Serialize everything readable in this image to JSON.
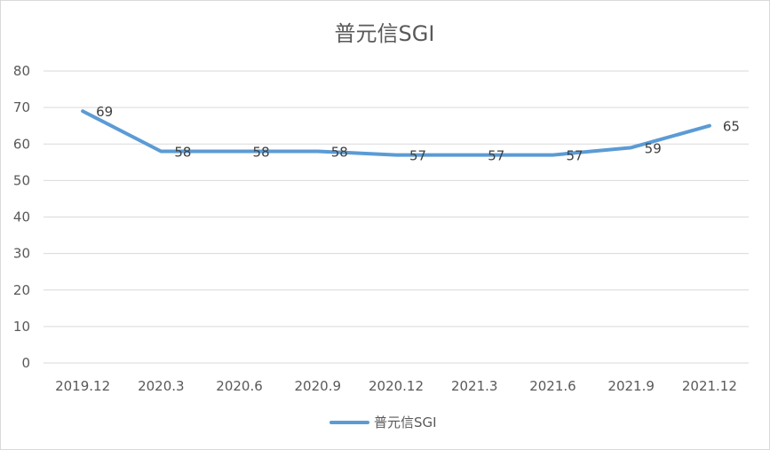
{
  "chart_data": {
    "type": "line",
    "title": "普元信SGI",
    "categories": [
      "2019.12",
      "2020.3",
      "2020.6",
      "2020.9",
      "2020.12",
      "2021.3",
      "2021.6",
      "2021.9",
      "2021.12"
    ],
    "series": [
      {
        "name": "普元信SGI",
        "values": [
          69,
          58,
          58,
          58,
          57,
          57,
          57,
          59,
          65
        ],
        "color": "#5b9bd5"
      }
    ],
    "ylim": [
      0,
      80
    ],
    "yticks": [
      0,
      10,
      20,
      30,
      40,
      50,
      60,
      70,
      80
    ],
    "grid": true,
    "data_labels": true,
    "legend_position": "bottom"
  }
}
